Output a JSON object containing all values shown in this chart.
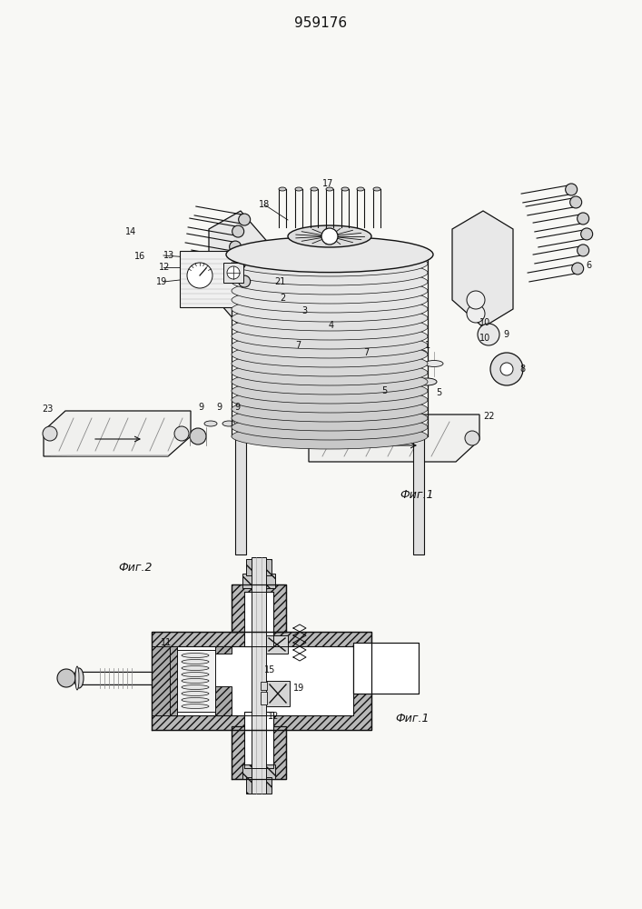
{
  "patent_number": "959176",
  "bg": "#f8f8f5",
  "lc": "#111111",
  "fig1_label": "Фиг.1",
  "fig2_label": "Фиг.2",
  "figsize": [
    7.07,
    10.0
  ],
  "dpi": 100
}
